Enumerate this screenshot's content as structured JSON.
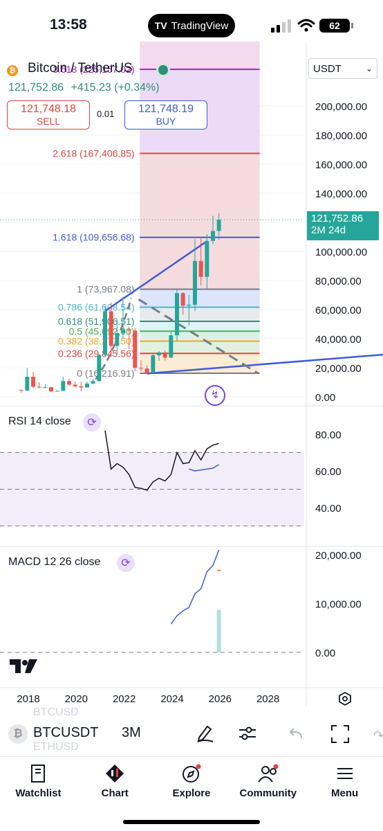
{
  "status": {
    "time": "13:58",
    "app": "TradingView",
    "battery": "62"
  },
  "symbol": {
    "name": "Bitcoin / TetherUS",
    "last": "121,752.86",
    "change": "+415.23 (+0.34%)"
  },
  "trade": {
    "sell_price": "121,748.18",
    "sell_label": "SELL",
    "spread": "0.01",
    "buy_price": "121,748.19",
    "buy_label": "BUY"
  },
  "currency": "USDT",
  "price_axis": [
    "200,000.00",
    "180,000.00",
    "160,000.00",
    "140,000.00",
    "100,000.00",
    "80,000.00",
    "60,000.00",
    "40,000.00",
    "20,000.00",
    "0.00"
  ],
  "price_tag": {
    "price": "121,752.86",
    "countdown": "2M 24d"
  },
  "fib_levels": [
    {
      "label": "3.618 (225,157.02)",
      "color": "#9c27b0"
    },
    {
      "label": "2.618 (167,406.85)",
      "color": "#e0433f"
    },
    {
      "label": "1.618 (109,656.68)",
      "color": "#3d5bd9"
    },
    {
      "label": "1 (73,967.08)",
      "color": "#787b86"
    },
    {
      "label": "0.786 (61,608.54)",
      "color": "#4fb6c9"
    },
    {
      "label": "0.618 (51,906.51)",
      "color": "#2d8f78"
    },
    {
      "label": "0.5 (45,092.00)",
      "color": "#4caf50"
    },
    {
      "label": "0.382 (38,277.50)",
      "color": "#f5a623"
    },
    {
      "label": "0.236 (29,845.56)",
      "color": "#e0433f"
    },
    {
      "label": "0 (16,216.91)",
      "color": "#787b86"
    }
  ],
  "rsi": {
    "label": "RSI 14 close",
    "axis": [
      "80.00",
      "60.00",
      "40.00"
    ]
  },
  "macd": {
    "label": "MACD 12 26 close",
    "axis": [
      "20,000.00",
      "10,000.00",
      "0.00"
    ]
  },
  "x_axis": [
    "2018",
    "2020",
    "2022",
    "2024",
    "2026",
    "2028"
  ],
  "toolbar": {
    "symbol": "BTCUSDT",
    "interval": "3M",
    "ghost_top": "BTCUSD",
    "ghost_bottom": "ETHUSD"
  },
  "tabs": [
    {
      "label": "Watchlist",
      "icon": "book-icon"
    },
    {
      "label": "Chart",
      "icon": "candles-icon"
    },
    {
      "label": "Explore",
      "icon": "compass-icon"
    },
    {
      "label": "Community",
      "icon": "people-icon"
    },
    {
      "label": "Menu",
      "icon": "hamburger-icon"
    }
  ],
  "chart_data": [
    {
      "type": "candlestick",
      "title": "Bitcoin / TetherUS",
      "x_ticks": [
        "2018",
        "2020",
        "2022",
        "2024",
        "2026",
        "2028"
      ],
      "ylim": [
        0,
        220000
      ],
      "interval": "3M",
      "candles": [
        {
          "period": "2017Q3",
          "o": 4700,
          "h": 5000,
          "l": 2800,
          "c": 4300
        },
        {
          "period": "2017Q4",
          "o": 4300,
          "h": 19800,
          "l": 4100,
          "c": 13800
        },
        {
          "period": "2018Q1",
          "o": 13800,
          "h": 17200,
          "l": 6000,
          "c": 6900
        },
        {
          "period": "2018Q2",
          "o": 6900,
          "h": 10000,
          "l": 5800,
          "c": 6400
        },
        {
          "period": "2018Q3",
          "o": 6400,
          "h": 8500,
          "l": 5900,
          "c": 6600
        },
        {
          "period": "2018Q4",
          "o": 6600,
          "h": 6800,
          "l": 3200,
          "c": 3700
        },
        {
          "period": "2019Q1",
          "o": 3700,
          "h": 4200,
          "l": 3300,
          "c": 4100
        },
        {
          "period": "2019Q2",
          "o": 4100,
          "h": 13900,
          "l": 4000,
          "c": 10800
        },
        {
          "period": "2019Q3",
          "o": 10800,
          "h": 12500,
          "l": 7700,
          "c": 8300
        },
        {
          "period": "2019Q4",
          "o": 8300,
          "h": 10500,
          "l": 6500,
          "c": 7200
        },
        {
          "period": "2020Q1",
          "o": 7200,
          "h": 10500,
          "l": 3800,
          "c": 6400
        },
        {
          "period": "2020Q2",
          "o": 6400,
          "h": 10400,
          "l": 6200,
          "c": 9100
        },
        {
          "period": "2020Q3",
          "o": 9100,
          "h": 12500,
          "l": 8900,
          "c": 10800
        },
        {
          "period": "2020Q4",
          "o": 10800,
          "h": 29000,
          "l": 10400,
          "c": 28900
        },
        {
          "period": "2021Q1",
          "o": 28900,
          "h": 61800,
          "l": 28100,
          "c": 58800
        },
        {
          "period": "2021Q2",
          "o": 58800,
          "h": 64900,
          "l": 28800,
          "c": 35000
        },
        {
          "period": "2021Q3",
          "o": 35000,
          "h": 52900,
          "l": 29300,
          "c": 43800
        },
        {
          "period": "2021Q4",
          "o": 43800,
          "h": 69000,
          "l": 40000,
          "c": 46200
        },
        {
          "period": "2022Q1",
          "o": 46200,
          "h": 48200,
          "l": 32900,
          "c": 45500
        },
        {
          "period": "2022Q2",
          "o": 45500,
          "h": 47500,
          "l": 17600,
          "c": 19900
        },
        {
          "period": "2022Q3",
          "o": 19900,
          "h": 25200,
          "l": 17600,
          "c": 19400
        },
        {
          "period": "2022Q4",
          "o": 19400,
          "h": 21500,
          "l": 15500,
          "c": 16500
        },
        {
          "period": "2023Q1",
          "o": 16500,
          "h": 29200,
          "l": 16500,
          "c": 28500
        },
        {
          "period": "2023Q2",
          "o": 28500,
          "h": 31400,
          "l": 24800,
          "c": 30500
        },
        {
          "period": "2023Q3",
          "o": 30500,
          "h": 31800,
          "l": 24900,
          "c": 27000
        },
        {
          "period": "2023Q4",
          "o": 27000,
          "h": 44700,
          "l": 26500,
          "c": 42300
        },
        {
          "period": "2024Q1",
          "o": 42300,
          "h": 73800,
          "l": 38500,
          "c": 71300
        },
        {
          "period": "2024Q2",
          "o": 71300,
          "h": 72000,
          "l": 56500,
          "c": 62700
        },
        {
          "period": "2024Q3",
          "o": 62700,
          "h": 70000,
          "l": 49000,
          "c": 63300
        },
        {
          "period": "2024Q4",
          "o": 63300,
          "h": 108300,
          "l": 58900,
          "c": 93400
        },
        {
          "period": "2025Q1",
          "o": 93400,
          "h": 109600,
          "l": 76600,
          "c": 82500
        },
        {
          "period": "2025Q2",
          "o": 82500,
          "h": 111900,
          "l": 74500,
          "c": 107200
        },
        {
          "period": "2025Q3",
          "o": 107200,
          "h": 124500,
          "l": 105000,
          "c": 114000
        },
        {
          "period": "2025Q4",
          "o": 114000,
          "h": 126000,
          "l": 108000,
          "c": 121752.86
        }
      ],
      "fib_extension": [
        {
          "level": 3.618,
          "price": 225157.02
        },
        {
          "level": 2.618,
          "price": 167406.85
        },
        {
          "level": 1.618,
          "price": 109656.68
        },
        {
          "level": 1,
          "price": 73967.08
        },
        {
          "level": 0.786,
          "price": 61608.54
        },
        {
          "level": 0.618,
          "price": 51906.51
        },
        {
          "level": 0.5,
          "price": 45092.0
        },
        {
          "level": 0.382,
          "price": 38277.5
        },
        {
          "level": 0.236,
          "price": 29845.56
        },
        {
          "level": 0,
          "price": 16216.91
        }
      ]
    },
    {
      "type": "line",
      "title": "RSI 14 close",
      "ylim": [
        30,
        85
      ],
      "bands": [
        70,
        50,
        30
      ],
      "series": [
        {
          "values": [
            {
              "t": "2021Q1",
              "v": 82
            },
            {
              "t": "2021Q2",
              "v": 61
            },
            {
              "t": "2021Q3",
              "v": 64
            },
            {
              "t": "2021Q4",
              "v": 62
            },
            {
              "t": "2022Q1",
              "v": 58
            },
            {
              "t": "2022Q2",
              "v": 51
            },
            {
              "t": "2022Q3",
              "v": 50.5
            },
            {
              "t": "2022Q4",
              "v": 49.5
            },
            {
              "t": "2023Q1",
              "v": 54
            },
            {
              "t": "2023Q2",
              "v": 56
            },
            {
              "t": "2023Q3",
              "v": 54.5
            },
            {
              "t": "2023Q4",
              "v": 58
            },
            {
              "t": "2024Q1",
              "v": 70
            },
            {
              "t": "2024Q2",
              "v": 64
            },
            {
              "t": "2024Q3",
              "v": 64.5
            },
            {
              "t": "2024Q4",
              "v": 71
            },
            {
              "t": "2025Q1",
              "v": 66
            },
            {
              "t": "2025Q2",
              "v": 72
            },
            {
              "t": "2025Q3",
              "v": 74
            },
            {
              "t": "2025Q4",
              "v": 75
            }
          ]
        },
        {
          "values": [
            {
              "t": "2024Q3",
              "v": 61
            },
            {
              "t": "2024Q4",
              "v": 60
            },
            {
              "t": "2025Q1",
              "v": 60.5
            },
            {
              "t": "2025Q2",
              "v": 61
            },
            {
              "t": "2025Q3",
              "v": 61.5
            },
            {
              "t": "2025Q4",
              "v": 63.5
            }
          ]
        }
      ]
    },
    {
      "type": "line",
      "title": "MACD 12 26 close",
      "ylim": [
        -500,
        22000
      ],
      "series": [
        {
          "values": [
            {
              "t": "2023Q4",
              "v": 5800
            },
            {
              "t": "2024Q1",
              "v": 7500
            },
            {
              "t": "2024Q2",
              "v": 8500
            },
            {
              "t": "2024Q3",
              "v": 9200
            },
            {
              "t": "2024Q4",
              "v": 12000
            },
            {
              "t": "2025Q1",
              "v": 13000
            },
            {
              "t": "2025Q2",
              "v": 16500
            },
            {
              "t": "2025Q3",
              "v": 17800
            },
            {
              "t": "2025Q4",
              "v": 21000
            }
          ]
        }
      ],
      "histogram": [
        {
          "t": "2025Q4",
          "v": 8700
        }
      ],
      "signal_marker": {
        "t": "2025Q4",
        "v": 16800
      }
    }
  ]
}
